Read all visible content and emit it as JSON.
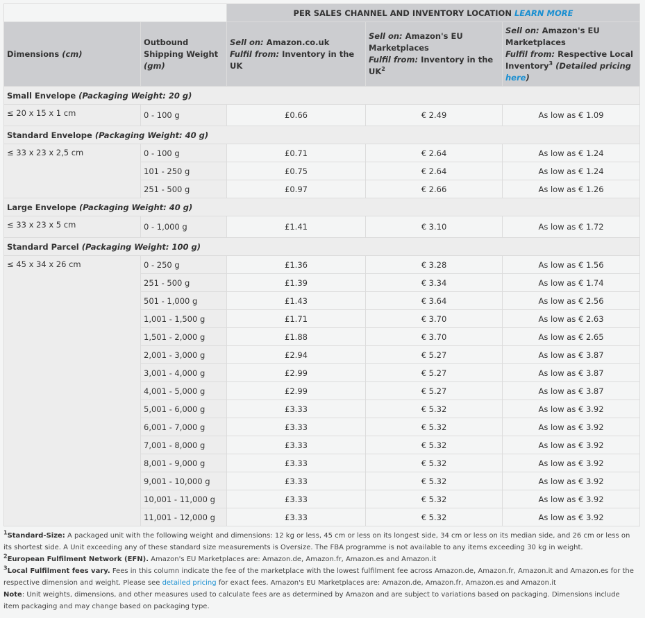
{
  "header": {
    "top_title": "PER SALES CHANNEL AND INVENTORY LOCATION",
    "learn_more": "LEARN MORE",
    "col_dimensions": "Dimensions",
    "col_dimensions_unit": "(cm)",
    "col_weight": "Outbound Shipping Weight",
    "col_weight_unit": "(gm)",
    "col_uk": {
      "sell_label": "Sell on:",
      "sell_value": "Amazon.co.uk",
      "fulfil_label": "Fulfil from:",
      "fulfil_value": "Inventory in the UK"
    },
    "col_eu": {
      "sell_label": "Sell on:",
      "sell_value": "Amazon's EU Marketplaces",
      "fulfil_label": "Fulfil from:",
      "fulfil_value": "Inventory in the UK",
      "sup": "2"
    },
    "col_local": {
      "sell_label": "Sell on:",
      "sell_value": "Amazon's EU Marketplaces",
      "fulfil_label": "Fulfil from:",
      "fulfil_value": "Respective Local Inventory",
      "sup": "3",
      "detail_text": "(Detailed pricing",
      "detail_link": "here",
      "detail_close": ")"
    }
  },
  "sections": [
    {
      "name": "Small Envelope",
      "packaging": "(Packaging Weight: 20 g)",
      "dimension": "≤ 20 x 15 x 1 cm",
      "rows": [
        {
          "weight": "0 - 100 g",
          "uk": "£0.66",
          "eu": "€ 2.49",
          "local": "As low as € 1.09"
        }
      ]
    },
    {
      "name": "Standard Envelope",
      "packaging": "(Packaging Weight: 40 g)",
      "dimension": "≤ 33 x 23 x 2,5 cm",
      "rows": [
        {
          "weight": "0 - 100 g",
          "uk": "£0.71",
          "eu": "€ 2.64",
          "local": "As low as € 1.24"
        },
        {
          "weight": "101 - 250 g",
          "uk": "£0.75",
          "eu": "€ 2.64",
          "local": "As low as € 1.24"
        },
        {
          "weight": "251 - 500 g",
          "uk": "£0.97",
          "eu": "€ 2.66",
          "local": "As low as € 1.26"
        }
      ]
    },
    {
      "name": "Large Envelope",
      "packaging": "(Packaging Weight: 40 g)",
      "dimension": "≤ 33 x 23 x 5 cm",
      "rows": [
        {
          "weight": "0 - 1,000 g",
          "uk": "£1.41",
          "eu": "€ 3.10",
          "local": "As low as € 1.72"
        }
      ]
    },
    {
      "name": "Standard Parcel",
      "packaging": "(Packaging Weight: 100 g)",
      "dimension": "≤ 45 x 34 x 26 cm",
      "rows": [
        {
          "weight": "0 - 250 g",
          "uk": "£1.36",
          "eu": "€ 3.28",
          "local": "As low as € 1.56"
        },
        {
          "weight": "251 - 500 g",
          "uk": "£1.39",
          "eu": "€ 3.34",
          "local": "As low as € 1.74"
        },
        {
          "weight": "501 - 1,000 g",
          "uk": "£1.43",
          "eu": "€ 3.64",
          "local": "As low as € 2.56"
        },
        {
          "weight": "1,001 - 1,500 g",
          "uk": "£1.71",
          "eu": "€ 3.70",
          "local": "As low as € 2.63"
        },
        {
          "weight": "1,501 - 2,000 g",
          "uk": "£1.88",
          "eu": "€ 3.70",
          "local": "As low as € 2.65"
        },
        {
          "weight": "2,001 - 3,000 g",
          "uk": "£2.94",
          "eu": "€ 5.27",
          "local": "As low as € 3.87"
        },
        {
          "weight": "3,001 - 4,000 g",
          "uk": "£2.99",
          "eu": "€ 5.27",
          "local": "As low as € 3.87"
        },
        {
          "weight": "4,001 - 5,000 g",
          "uk": "£2.99",
          "eu": "€ 5.27",
          "local": "As low as € 3.87"
        },
        {
          "weight": "5,001 - 6,000 g",
          "uk": "£3.33",
          "eu": "€ 5.32",
          "local": "As low as € 3.92"
        },
        {
          "weight": "6,001 - 7,000 g",
          "uk": "£3.33",
          "eu": "€ 5.32",
          "local": "As low as € 3.92"
        },
        {
          "weight": "7,001 - 8,000 g",
          "uk": "£3.33",
          "eu": "€ 5.32",
          "local": "As low as € 3.92"
        },
        {
          "weight": "8,001 - 9,000 g",
          "uk": "£3.33",
          "eu": "€ 5.32",
          "local": "As low as € 3.92"
        },
        {
          "weight": "9,001 - 10,000 g",
          "uk": "£3.33",
          "eu": "€ 5.32",
          "local": "As low as € 3.92"
        },
        {
          "weight": "10,001 - 11,000 g",
          "uk": "£3.33",
          "eu": "€ 5.32",
          "local": "As low as € 3.92"
        },
        {
          "weight": "11,001 - 12,000 g",
          "uk": "£3.33",
          "eu": "€ 5.32",
          "local": "As low as € 3.92"
        }
      ]
    }
  ],
  "notes": {
    "n1": {
      "sup": "1",
      "title": "Standard-Size:",
      "text": " A packaged unit with the following weight and dimensions: 12 kg or less, 45 cm or less on its longest side, 34 cm or less on its median side, and 26 cm or less on its shortest side. A Unit exceeding any of these standard size measurements is Oversize. The FBA programme is not available to any items exceeding 30 kg in weight."
    },
    "n2": {
      "sup": "2",
      "title": "European Fulfilment Network (EFN).",
      "text": " Amazon's EU Marketplaces are: Amazon.de, Amazon.fr, Amazon.es and Amazon.it"
    },
    "n3": {
      "sup": "3",
      "title": "Local Fulfilment fees vary.",
      "text_a": " Fees in this column indicate the fee of the marketplace with the lowest fulfilment fee across Amazon.de, Amazon.fr, Amazon.it and Amazon.es for the respective dimension and weight. Please see ",
      "link": "detailed pricing",
      "text_b": " for exact fees. Amazon's EU Marketplaces are: Amazon.de, Amazon.fr, Amazon.es and Amazon.it"
    },
    "note": {
      "title": "Note",
      "text": ": Unit weights, dimensions, and other measures used to calculate fees are as determined by Amazon and are subject to variations based on packaging. Dimensions include item packaging and may change based on packaging type."
    }
  },
  "colors": {
    "header_bg": "#cccdd0",
    "section_bg": "#ededed",
    "cell_bg": "#f4f5f5",
    "link": "#1a8fd1",
    "border": "#dcdcdc"
  }
}
